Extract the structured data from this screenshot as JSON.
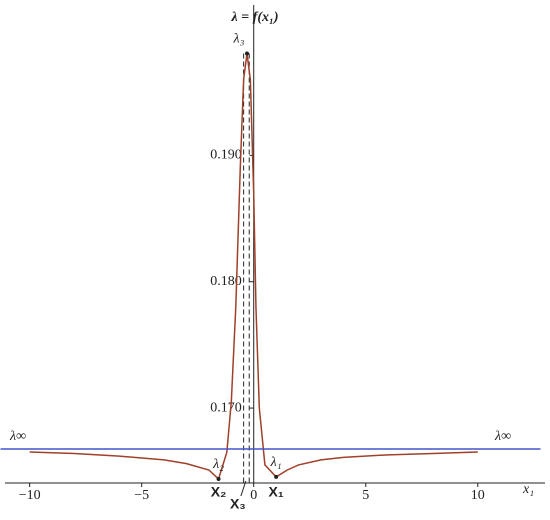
{
  "chart_data": {
    "type": "line",
    "y_label": "λ = f(x₁)",
    "x_label": "x₁",
    "xlim": [
      -11.1,
      13.0
    ],
    "ylim": [
      0.16407,
      0.2019
    ],
    "xticks": [
      {
        "value": -10,
        "label": "−10"
      },
      {
        "value": -5,
        "label": "−5"
      },
      0,
      5,
      10
    ],
    "yticks": [
      {
        "value": 0.17,
        "label": "0.170"
      },
      {
        "value": 0.18,
        "label": "0.180"
      },
      {
        "value": 0.19,
        "label": "0.190"
      }
    ],
    "series": [
      {
        "name": "λ",
        "color": "#a0402a",
        "x": [
          -10,
          -8,
          -6,
          -4,
          -3,
          -2,
          -1.57,
          -1.2,
          -1.0,
          -0.8,
          -0.6,
          -0.45,
          -0.3,
          -0.15,
          0,
          0.1,
          0.25,
          0.5,
          1.0,
          1.5,
          2,
          3,
          4,
          6,
          8,
          10
        ],
        "values": [
          0.16652,
          0.1664,
          0.1662,
          0.1659,
          0.1656,
          0.1651,
          0.16439,
          0.1665,
          0.1705,
          0.178,
          0.189,
          0.196,
          0.19806,
          0.196,
          0.187,
          0.178,
          0.17,
          0.1655,
          0.16455,
          0.1651,
          0.1655,
          0.1659,
          0.1661,
          0.1663,
          0.1664,
          0.16652
        ]
      },
      {
        "name": "λ∞",
        "color": "#4455cc",
        "x": [
          -11.3,
          12.8
        ],
        "values": [
          0.16676,
          0.16676
        ]
      }
    ],
    "limit_labels": [
      "λ∞",
      "λ∞"
    ],
    "points": [
      {
        "label": "λ₃",
        "x": -0.3,
        "y": 0.19806
      },
      {
        "label": "λ₂",
        "x": -1.57,
        "y": 0.16439
      },
      {
        "label": "λ₁",
        "x": 1.0,
        "y": 0.16455
      }
    ],
    "markers": [
      {
        "label": "X₂",
        "x": -1.57
      },
      {
        "label": "X₃",
        "x": -0.35
      },
      {
        "label": "X₁",
        "x": 1.0
      }
    ],
    "guides": [
      -0.45,
      -0.2
    ]
  }
}
